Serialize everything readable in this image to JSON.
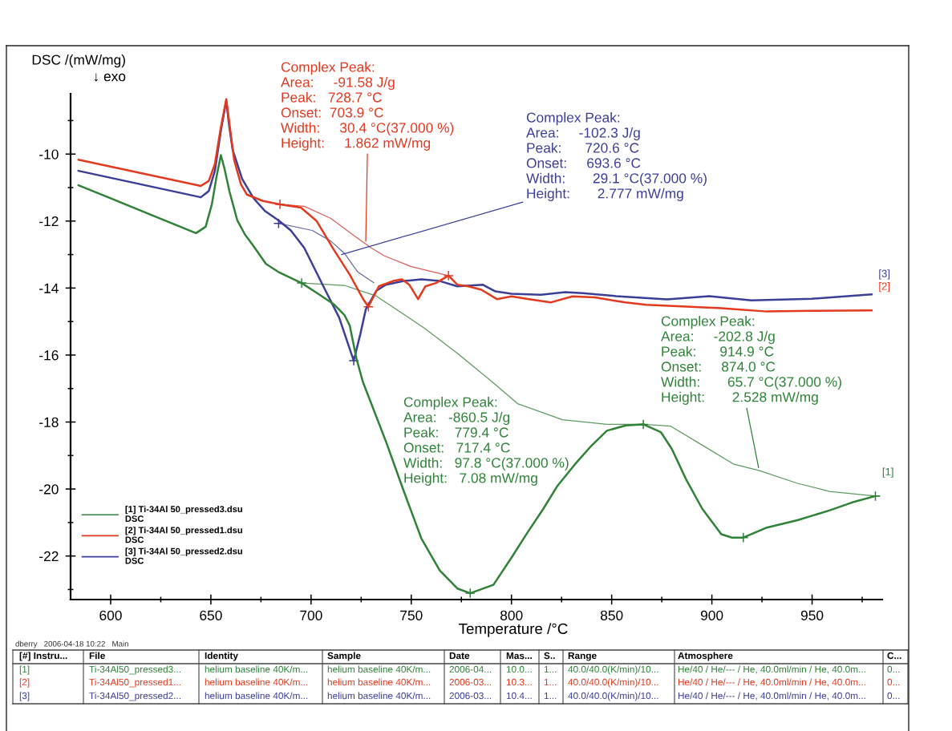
{
  "chart_data": {
    "type": "line",
    "xlabel": "Temperature /°C",
    "ylabel": "DSC /(mW/mg)\n↓ exo",
    "xlim": [
      580,
      985
    ],
    "ylim": [
      -23.3,
      -8.2
    ],
    "xticks": [
      600,
      {
        "value": 625,
        "label": null
      },
      650,
      {
        "value": 675,
        "label": null
      },
      700,
      {
        "value": 725,
        "label": null
      },
      750,
      {
        "value": 775,
        "label": null
      },
      800,
      {
        "value": 825,
        "label": null
      },
      850,
      {
        "value": 875,
        "label": null
      },
      900,
      {
        "value": 925,
        "label": null
      },
      950,
      {
        "value": 975,
        "label": null
      }
    ],
    "yticks": [
      {
        "value": -9,
        "label": null
      },
      -10,
      {
        "value": -11,
        "label": null
      },
      -12,
      {
        "value": -13,
        "label": null
      },
      -14,
      {
        "value": -15,
        "label": null
      },
      -16,
      {
        "value": -17,
        "label": null
      },
      -18,
      {
        "value": -19,
        "label": null
      },
      -20,
      {
        "value": -21,
        "label": null
      },
      -22,
      {
        "value": -23,
        "label": null
      }
    ],
    "legend": "bottom left",
    "series": [
      {
        "name": "[1] Ti-34Al 50_pressed3.dsu\nDSC",
        "type": "line",
        "color": "#2f8238",
        "x": [
          583.9,
          600,
          620,
          642.6,
          647.4,
          650.5,
          652.9,
          655,
          656.9,
          659.3,
          663.2,
          667,
          671.2,
          677.5,
          683.7,
          690,
          695.3,
          703.2,
          711.3,
          716.6,
          719.3,
          722.6,
          725.9,
          737.3,
          746.3,
          755,
          764.2,
          773,
          779.4,
          791,
          800,
          808,
          815.9,
          823,
          831.7,
          840,
          847.6,
          857.1,
          865.8,
          874.5,
          880,
          887.2,
          895.2,
          904.7,
          910,
          915.7,
          927,
          942.7,
          958.6,
          970,
          981.6
        ],
        "values": [
          -10.93,
          -11.32,
          -11.81,
          -12.36,
          -12.17,
          -11.5,
          -10.65,
          -10.03,
          -10.46,
          -11.12,
          -11.98,
          -12.4,
          -12.74,
          -13.28,
          -13.52,
          -13.7,
          -13.85,
          -14.16,
          -14.48,
          -14.8,
          -15.12,
          -16.09,
          -16.81,
          -18.57,
          -20.07,
          -21.47,
          -22.43,
          -22.97,
          -23.11,
          -22.86,
          -22.05,
          -21.3,
          -20.59,
          -19.9,
          -19.26,
          -18.7,
          -18.26,
          -18.1,
          -18.07,
          -18.3,
          -18.8,
          -19.72,
          -20.59,
          -21.35,
          -21.45,
          -21.45,
          -21.16,
          -20.93,
          -20.64,
          -20.4,
          -20.21
        ]
      },
      {
        "name": "[2] Ti-34Al 50_pressed1.dsu\nDSC",
        "type": "line",
        "color": "#e2391f",
        "x": [
          583.9,
          645,
          649,
          652,
          655,
          657.7,
          659.5,
          661.6,
          665,
          668,
          676,
          684.5,
          695,
          702.8,
          711.3,
          719.3,
          725.9,
          728.6,
          733.8,
          740.9,
          745.4,
          749,
          753.4,
          757,
          762.3,
          768.6,
          773,
          778.5,
          785,
          792.7,
          800,
          808.7,
          819.5,
          830.4,
          841.6,
          856.8,
          867.2,
          885,
          904.7,
          927.3,
          949.8,
          979.8
        ],
        "values": [
          -10.17,
          -10.95,
          -10.8,
          -10.3,
          -9.2,
          -8.36,
          -9.2,
          -10.17,
          -10.9,
          -11.21,
          -11.4,
          -11.5,
          -11.6,
          -12.0,
          -12.85,
          -13.6,
          -14.32,
          -14.56,
          -13.95,
          -13.79,
          -13.74,
          -13.9,
          -14.33,
          -13.95,
          -13.85,
          -13.63,
          -13.9,
          -13.95,
          -14.05,
          -14.33,
          -14.25,
          -14.33,
          -14.43,
          -14.25,
          -14.28,
          -14.43,
          -14.5,
          -14.55,
          -14.6,
          -14.7,
          -14.68,
          -14.67
        ]
      },
      {
        "name": "[3] Ti-34Al 50_pressed2.dsu\nDSC",
        "type": "line",
        "color": "#3b3f98",
        "x": [
          583.9,
          645,
          649,
          652,
          655,
          657.7,
          659,
          660.9,
          665.6,
          671.2,
          677,
          683.8,
          689.9,
          696.6,
          705.9,
          714,
          721.3,
          724.6,
          727.3,
          732.6,
          737.3,
          746.3,
          755,
          764.2,
          773,
          785.6,
          792,
          800,
          814.7,
          826.8,
          835.6,
          852.2,
          877.7,
          898.7,
          919.7,
          949.8,
          979.8
        ],
        "values": [
          -10.5,
          -11.29,
          -11.1,
          -10.5,
          -9.3,
          -8.4,
          -9.1,
          -9.88,
          -10.74,
          -11.31,
          -11.7,
          -11.98,
          -12.28,
          -12.8,
          -13.92,
          -14.88,
          -16.17,
          -15.37,
          -14.64,
          -14.08,
          -13.9,
          -13.79,
          -13.74,
          -13.79,
          -13.95,
          -13.9,
          -14.1,
          -14.17,
          -14.2,
          -14.12,
          -14.15,
          -14.24,
          -14.34,
          -14.24,
          -14.37,
          -14.32,
          -14.19
        ]
      },
      {
        "type": "line",
        "color": "#d9605a",
        "x": [
          684.5,
          696.6,
          709.9,
          720.6,
          730,
          736.6,
          750,
          768.6
        ],
        "values": [
          -11.5,
          -11.56,
          -11.92,
          -12.4,
          -12.8,
          -13.04,
          -13.36,
          -13.63
        ]
      },
      {
        "type": "line",
        "color": "#6a6aa8",
        "x": [
          683.8,
          700.6,
          709.9,
          716.6,
          723.3,
          731.3
        ],
        "values": [
          -12.07,
          -12.28,
          -12.6,
          -12.96,
          -13.52,
          -13.84
        ]
      },
      {
        "type": "line",
        "color": "#5f9a62",
        "x": [
          695.3,
          716.6,
          732.6,
          756.6,
          773,
          791.4,
          803,
          825.4,
          847.6,
          865.8
        ],
        "values": [
          -13.85,
          -13.92,
          -14.24,
          -15.2,
          -15.95,
          -16.85,
          -17.45,
          -17.93,
          -18.07,
          -18.07
        ]
      },
      {
        "type": "line",
        "color": "#5f9a62",
        "x": [
          865.8,
          879.3,
          895.2,
          911,
          923.7,
          942.7,
          958.6,
          981.6
        ],
        "values": [
          -18.07,
          -18.12,
          -18.69,
          -19.26,
          -19.45,
          -19.83,
          -20.07,
          -20.21
        ]
      },
      {
        "type": "scatter",
        "marker": "cross",
        "color": "#e2391f",
        "x": [
          684.5,
          728.6,
          768.6
        ],
        "values": [
          -11.5,
          -14.56,
          -13.63
        ]
      },
      {
        "type": "scatter",
        "marker": "cross",
        "color": "#3b3f98",
        "x": [
          683.8,
          721.3
        ],
        "values": [
          -12.07,
          -16.17
        ]
      },
      {
        "type": "scatter",
        "marker": "cross",
        "color": "#2f8238",
        "x": [
          695.3,
          779.4,
          865.8,
          915.7,
          981.6
        ],
        "values": [
          -13.85,
          -23.11,
          -18.07,
          -21.45,
          -20.21
        ]
      }
    ],
    "annotations": [
      {
        "text": "Complex Peak:\nArea:     -91.58 J/g\nPeak:   728.7 °C\nOnset:  703.9 °C\nWidth:     30.4 °C(37.000 %)\nHeight:     1.862 mW/mg",
        "x": 727.3,
        "y": -12.6
      },
      {
        "text": "Complex Peak:\nArea:     -102.3 J/g\nPeak:      720.6 °C\nOnset:     693.6 °C\nWidth:       29.1 °C(37.000 %)\nHeight:       2.777 mW/mg",
        "x": 715.2,
        "y": -13.0
      },
      "Complex Peak:\nArea:   -860.5 J/g\nPeak:    779.4 °C\nOnset:   717.4 °C\nWidth:   97.8 °C(37.000 %)\nHeight:   7.08 mW/mg",
      {
        "text": "Complex Peak:\nArea:     -202.8 J/g\nPeak:      914.9 °C\nOnset:     874.0 °C\nWidth:       65.7 °C(37.000 %)\nHeight:       2.528 mW/mg",
        "x": 923.3,
        "y": -19.36
      },
      {
        "text": "[3]",
        "x": 979.8,
        "y": -14.19
      },
      {
        "text": "[2]",
        "x": 979.8,
        "y": -14.67
      },
      {
        "text": "[1]",
        "x": 981.6,
        "y": -20.21
      },
      "dberry   2006-04-18 10:22   Main",
      "[#] Instru...\tFile\tIdentity\tSample\tDate\tMas...\tS..\tRange\tAtmosphere\tC...",
      "[1]\tTi-34Al50_pressed3...\thelium baseline 40K/m...\thelium baseline 40K/m...\t2006-04...\t10.0...\t1...\t40.0/40.0(K/min)/10...\tHe/40 / He/--- / He, 40.0ml/min / He, 40.0m...\t0...",
      "[2]\tTi-34Al50_pressed1...\thelium baseline 40K/m...\thelium baseline 40K/m...\t2006-03...\t10.3...\t1...\t40.0/40.0(K/min)/10...\tHe/40 / He/--- / He, 40.0ml/min / He, 40.0m...\t0...",
      "[3]\tTi-34Al50_pressed2...\thelium baseline 40K/m...\thelium baseline 40K/m...\t2006-03...\t10.4...\t1...\t40.0/40.0(K/min)/10...\tHe/40 / He/--- / He, 40.0ml/min / He, 40.0m...\t0..."
    ]
  }
}
